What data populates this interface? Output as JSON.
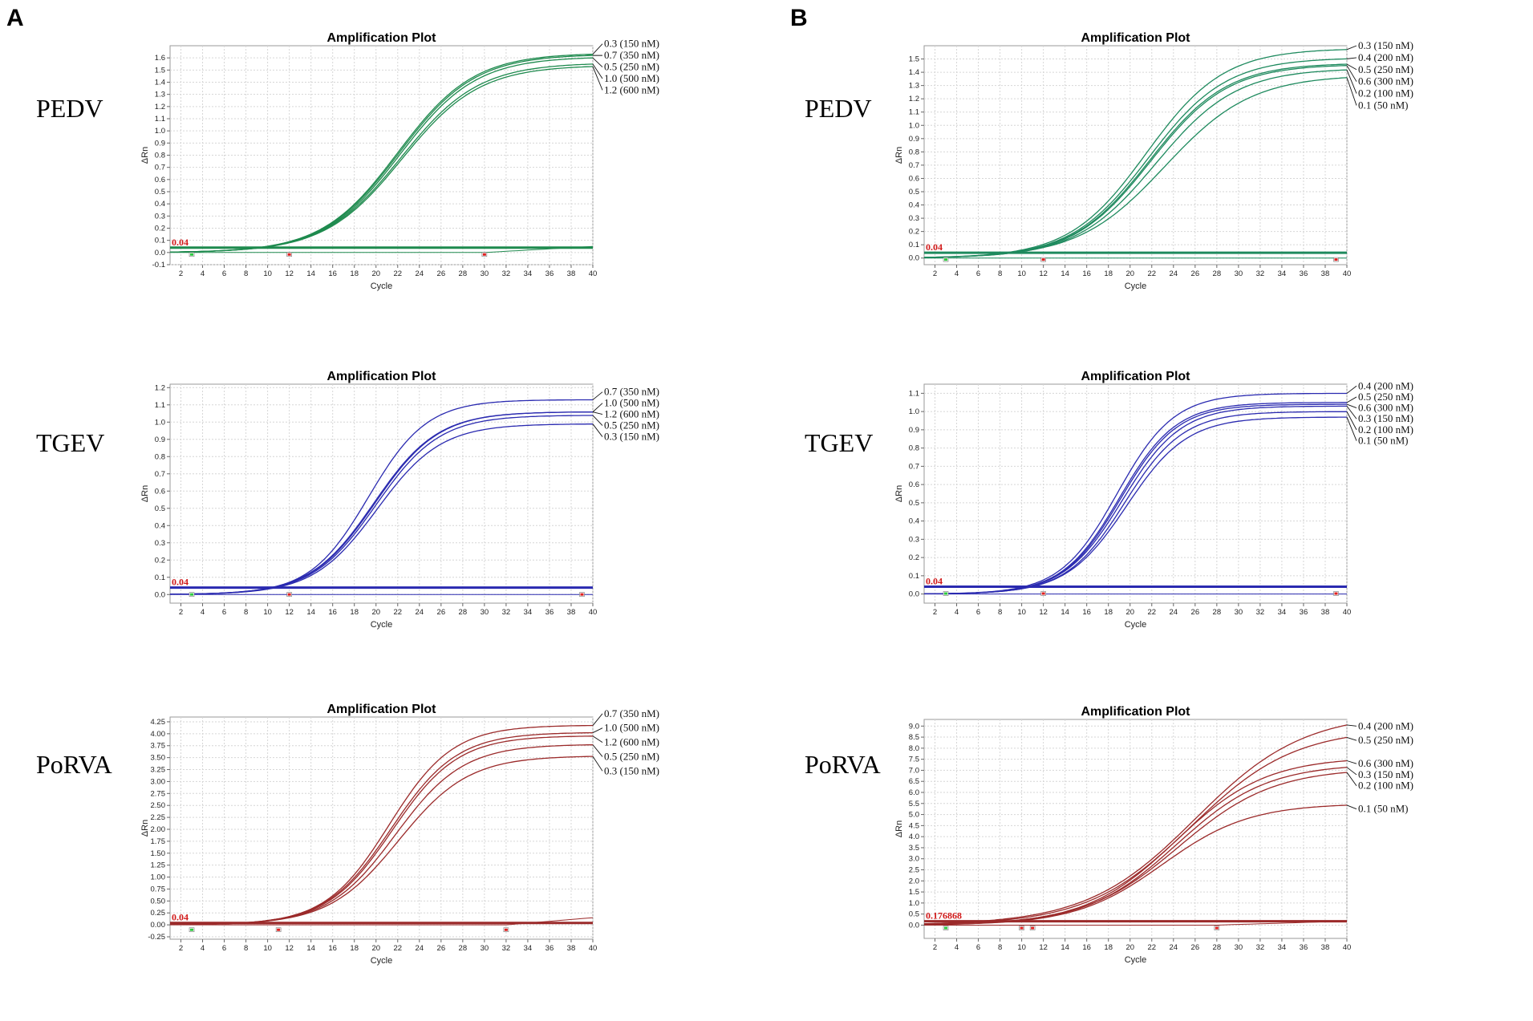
{
  "panels": {
    "A": "A",
    "B": "B"
  },
  "virus_labels": {
    "row1": "PEDV",
    "row2": "TGEV",
    "row3": "PoRVA"
  },
  "chart_data": [
    {
      "id": "A1",
      "type": "line",
      "title": "Amplification Plot",
      "xlabel": "Cycle",
      "ylabel": "ΔRn",
      "color": "#1e8a4e",
      "threshold": 0.04,
      "threshold_label": "0.04",
      "xlim": [
        1,
        40
      ],
      "ylim": [
        -0.1,
        1.7
      ],
      "yticks": [
        "-0.1",
        "0.0",
        "0.1",
        "0.2",
        "0.3",
        "0.4",
        "0.5",
        "0.6",
        "0.7",
        "0.8",
        "0.9",
        "1.0",
        "1.1",
        "1.2",
        "1.3",
        "1.4",
        "1.5",
        "1.6"
      ],
      "xticks": [
        "2",
        "4",
        "6",
        "8",
        "10",
        "12",
        "14",
        "16",
        "18",
        "20",
        "22",
        "24",
        "26",
        "28",
        "30",
        "32",
        "34",
        "36",
        "38",
        "40"
      ],
      "markers": [
        3,
        12,
        30
      ],
      "series": [
        {
          "name": "0.3 (150 nM)",
          "plateau": 1.64,
          "midpoint": 22.0,
          "slope": 0.285,
          "label_value": 1.715
        },
        {
          "name": "0.7 (350 nM)",
          "plateau": 1.63,
          "midpoint": 22.1,
          "slope": 0.285,
          "label_value": 1.62
        },
        {
          "name": "0.5 (250 nM)",
          "plateau": 1.61,
          "midpoint": 22.2,
          "slope": 0.285,
          "label_value": 1.525
        },
        {
          "name": "1.0 (500 nM)",
          "plateau": 1.56,
          "midpoint": 22.3,
          "slope": 0.28,
          "label_value": 1.43
        },
        {
          "name": "1.2 (600 nM)",
          "plateau": 1.54,
          "midpoint": 22.4,
          "slope": 0.28,
          "label_value": 1.335
        }
      ],
      "baseline_curve": {
        "rise_start": 30,
        "end_value": 0.05
      }
    },
    {
      "id": "B1",
      "type": "line",
      "title": "Amplification Plot",
      "xlabel": "Cycle",
      "ylabel": "ΔRn",
      "color": "#1e8a5e",
      "threshold": 0.04,
      "threshold_label": "0.04",
      "xlim": [
        1,
        40
      ],
      "ylim": [
        -0.05,
        1.6
      ],
      "yticks": [
        "0.0",
        "0.1",
        "0.2",
        "0.3",
        "0.4",
        "0.5",
        "0.6",
        "0.7",
        "0.8",
        "0.9",
        "1.0",
        "1.1",
        "1.2",
        "1.3",
        "1.4",
        "1.5"
      ],
      "xticks": [
        "2",
        "4",
        "6",
        "8",
        "10",
        "12",
        "14",
        "16",
        "18",
        "20",
        "22",
        "24",
        "26",
        "28",
        "30",
        "32",
        "34",
        "36",
        "38",
        "40"
      ],
      "markers": [
        3,
        12,
        39
      ],
      "series": [
        {
          "name": "0.3 (150 nM)",
          "plateau": 1.58,
          "midpoint": 21.5,
          "slope": 0.28,
          "label_value": 1.6
        },
        {
          "name": "0.4 (200 nM)",
          "plateau": 1.51,
          "midpoint": 21.7,
          "slope": 0.28,
          "label_value": 1.51
        },
        {
          "name": "0.5 (250 nM)",
          "plateau": 1.47,
          "midpoint": 21.8,
          "slope": 0.28,
          "label_value": 1.42
        },
        {
          "name": "0.6 (300 nM)",
          "plateau": 1.46,
          "midpoint": 21.9,
          "slope": 0.28,
          "label_value": 1.33
        },
        {
          "name": "0.2 (100 nM)",
          "plateau": 1.43,
          "midpoint": 22.4,
          "slope": 0.27,
          "label_value": 1.24
        },
        {
          "name": "0.1 (50 nM)",
          "plateau": 1.38,
          "midpoint": 23.2,
          "slope": 0.25,
          "label_value": 1.15
        }
      ],
      "baseline_curve": {
        "rise_start": 40,
        "end_value": 0.0
      }
    },
    {
      "id": "A2",
      "type": "line",
      "title": "Amplification Plot",
      "xlabel": "Cycle",
      "ylabel": "ΔRn",
      "color": "#2a2ab0",
      "threshold": 0.04,
      "threshold_label": "0.04",
      "xlim": [
        1,
        40
      ],
      "ylim": [
        -0.05,
        1.22
      ],
      "yticks": [
        "0.0",
        "0.1",
        "0.2",
        "0.3",
        "0.4",
        "0.5",
        "0.6",
        "0.7",
        "0.8",
        "0.9",
        "1.0",
        "1.1",
        "1.2"
      ],
      "xticks": [
        "2",
        "4",
        "6",
        "8",
        "10",
        "12",
        "14",
        "16",
        "18",
        "20",
        "22",
        "24",
        "26",
        "28",
        "30",
        "32",
        "34",
        "36",
        "38",
        "40"
      ],
      "markers": [
        3,
        12,
        39
      ],
      "series": [
        {
          "name": "0.7 (350 nM)",
          "plateau": 1.13,
          "midpoint": 19.3,
          "slope": 0.37,
          "label_value": 1.175
        },
        {
          "name": "1.0 (500 nM)",
          "plateau": 1.06,
          "midpoint": 19.8,
          "slope": 0.34,
          "label_value": 1.11
        },
        {
          "name": "1.2 (600 nM)",
          "plateau": 1.06,
          "midpoint": 19.9,
          "slope": 0.34,
          "label_value": 1.045
        },
        {
          "name": "0.5 (250 nM)",
          "plateau": 1.04,
          "midpoint": 20.0,
          "slope": 0.34,
          "label_value": 0.98
        },
        {
          "name": "0.3 (150 nM)",
          "plateau": 0.99,
          "midpoint": 20.1,
          "slope": 0.34,
          "label_value": 0.915
        }
      ],
      "baseline_curve": {
        "rise_start": 40,
        "end_value": 0.0
      }
    },
    {
      "id": "B2",
      "type": "line",
      "title": "Amplification Plot",
      "xlabel": "Cycle",
      "ylabel": "ΔRn",
      "color": "#2a2ab0",
      "threshold": 0.04,
      "threshold_label": "0.04",
      "xlim": [
        1,
        40
      ],
      "ylim": [
        -0.05,
        1.15
      ],
      "yticks": [
        "0.0",
        "0.1",
        "0.2",
        "0.3",
        "0.4",
        "0.5",
        "0.6",
        "0.7",
        "0.8",
        "0.9",
        "1.0",
        "1.1"
      ],
      "xticks": [
        "2",
        "4",
        "6",
        "8",
        "10",
        "12",
        "14",
        "16",
        "18",
        "20",
        "22",
        "24",
        "26",
        "28",
        "30",
        "32",
        "34",
        "36",
        "38",
        "40"
      ],
      "markers": [
        3,
        12,
        39
      ],
      "series": [
        {
          "name": "0.4 (200 nM)",
          "plateau": 1.1,
          "midpoint": 18.8,
          "slope": 0.38,
          "label_value": 1.14
        },
        {
          "name": "0.5 (250 nM)",
          "plateau": 1.05,
          "midpoint": 19.0,
          "slope": 0.38,
          "label_value": 1.08
        },
        {
          "name": "0.6 (300 nM)",
          "plateau": 1.04,
          "midpoint": 19.1,
          "slope": 0.38,
          "label_value": 1.02
        },
        {
          "name": "0.3 (150 nM)",
          "plateau": 1.03,
          "midpoint": 19.3,
          "slope": 0.37,
          "label_value": 0.96
        },
        {
          "name": "0.2 (100 nM)",
          "plateau": 1.0,
          "midpoint": 19.5,
          "slope": 0.37,
          "label_value": 0.9
        },
        {
          "name": "0.1 (50 nM)",
          "plateau": 0.97,
          "midpoint": 19.7,
          "slope": 0.36,
          "label_value": 0.84
        }
      ],
      "baseline_curve": {
        "rise_start": 40,
        "end_value": 0.0
      }
    },
    {
      "id": "A3",
      "type": "line",
      "title": "Amplification Plot",
      "xlabel": "Cycle",
      "ylabel": "ΔRn",
      "color": "#9b2a2a",
      "threshold": 0.04,
      "threshold_label": "0.04",
      "xlim": [
        1,
        40
      ],
      "ylim": [
        -0.3,
        4.35
      ],
      "yticks": [
        "-0.25",
        "0.00",
        "0.25",
        "0.50",
        "0.75",
        "1.00",
        "1.25",
        "1.50",
        "1.75",
        "2.00",
        "2.25",
        "2.50",
        "2.75",
        "3.00",
        "3.25",
        "3.50",
        "3.75",
        "4.00",
        "4.25"
      ],
      "xticks": [
        "2",
        "4",
        "6",
        "8",
        "10",
        "12",
        "14",
        "16",
        "18",
        "20",
        "22",
        "24",
        "26",
        "28",
        "30",
        "32",
        "34",
        "36",
        "38",
        "40"
      ],
      "markers": [
        3,
        11,
        32
      ],
      "series": [
        {
          "name": "0.7 (350 nM)",
          "plateau": 4.18,
          "midpoint": 21.2,
          "slope": 0.34,
          "label_value": 4.42
        },
        {
          "name": "1.0 (500 nM)",
          "plateau": 4.03,
          "midpoint": 21.4,
          "slope": 0.33,
          "label_value": 4.12
        },
        {
          "name": "1.2 (600 nM)",
          "plateau": 3.96,
          "midpoint": 21.5,
          "slope": 0.33,
          "label_value": 3.82
        },
        {
          "name": "0.5 (250 nM)",
          "plateau": 3.78,
          "midpoint": 21.8,
          "slope": 0.32,
          "label_value": 3.52
        },
        {
          "name": "0.3 (150 nM)",
          "plateau": 3.54,
          "midpoint": 22.1,
          "slope": 0.31,
          "label_value": 3.22
        }
      ],
      "baseline_curve": {
        "rise_start": 32,
        "end_value": 0.15
      }
    },
    {
      "id": "B3",
      "type": "line",
      "title": "Amplification Plot",
      "xlabel": "Cycle",
      "ylabel": "ΔRn",
      "color": "#9b2a2a",
      "threshold": 0.176868,
      "threshold_label": "0.176868",
      "xlim": [
        1,
        40
      ],
      "ylim": [
        -0.6,
        9.3
      ],
      "yticks": [
        "0.0",
        "0.5",
        "1.0",
        "1.5",
        "2.0",
        "2.5",
        "3.0",
        "3.5",
        "4.0",
        "4.5",
        "5.0",
        "5.5",
        "6.0",
        "6.5",
        "7.0",
        "7.5",
        "8.0",
        "8.5",
        "9.0"
      ],
      "xticks": [
        "2",
        "4",
        "6",
        "8",
        "10",
        "12",
        "14",
        "16",
        "18",
        "20",
        "22",
        "24",
        "26",
        "28",
        "30",
        "32",
        "34",
        "36",
        "38",
        "40"
      ],
      "markers": [
        3,
        10,
        11,
        28
      ],
      "series": [
        {
          "name": "0.4 (200 nM)",
          "plateau": 9.6,
          "midpoint": 26.0,
          "slope": 0.2,
          "label_value": 9.0
        },
        {
          "name": "0.5 (250 nM)",
          "plateau": 8.9,
          "midpoint": 25.6,
          "slope": 0.21,
          "label_value": 8.35
        },
        {
          "name": "0.6 (300 nM)",
          "plateau": 7.6,
          "midpoint": 24.2,
          "slope": 0.24,
          "label_value": 7.3
        },
        {
          "name": "0.3 (150 nM)",
          "plateau": 7.3,
          "midpoint": 24.3,
          "slope": 0.24,
          "label_value": 6.8
        },
        {
          "name": "0.2 (100 nM)",
          "plateau": 7.1,
          "midpoint": 24.5,
          "slope": 0.23,
          "label_value": 6.3
        },
        {
          "name": "0.1 (50 nM)",
          "plateau": 5.5,
          "midpoint": 23.0,
          "slope": 0.25,
          "label_value": 5.25
        }
      ],
      "baseline_curve": {
        "rise_start": 28,
        "end_value": 0.18
      }
    }
  ]
}
